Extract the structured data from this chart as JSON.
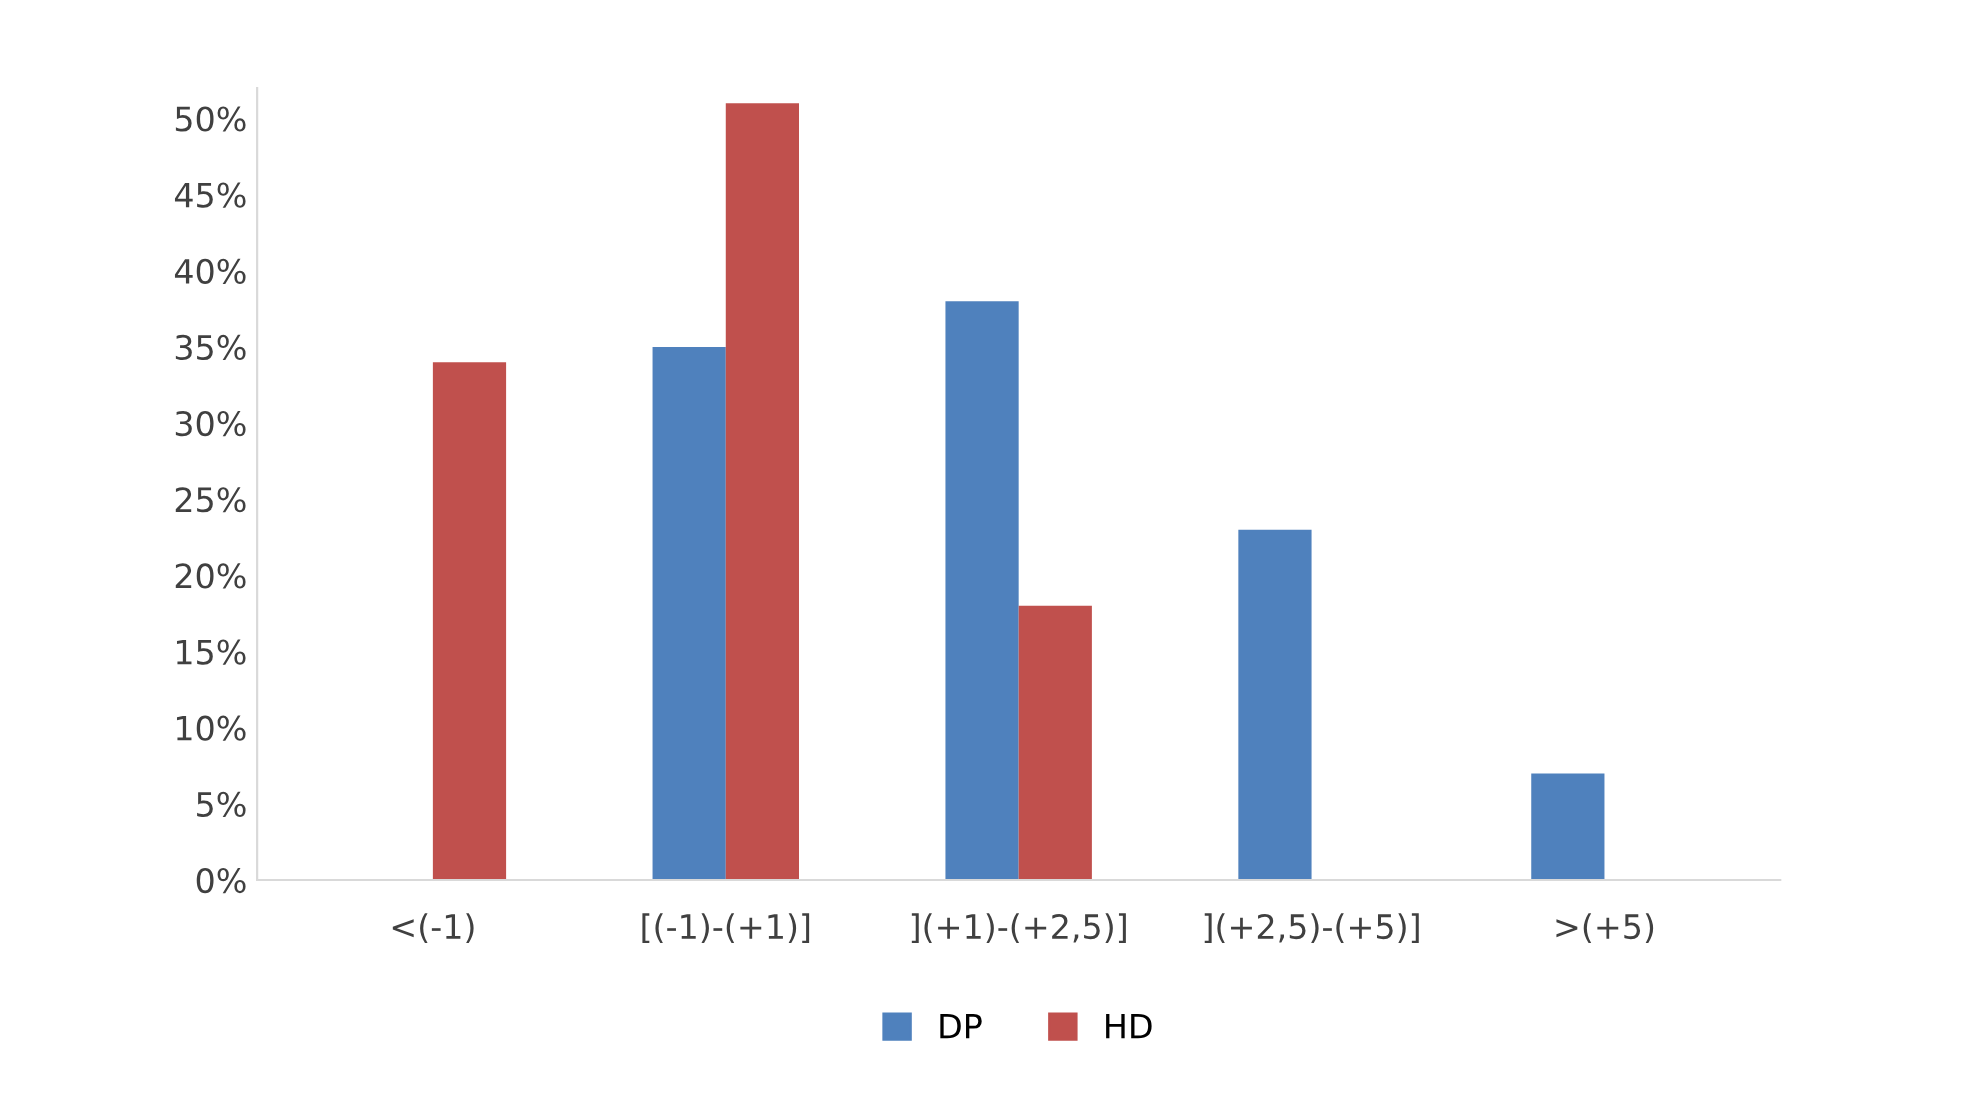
{
  "chart_data": {
    "type": "bar",
    "categories": [
      "<(-1)",
      "[(-1)-(+1)]",
      "](+1)-(+2,5)]",
      "](+2,5)-(+5)]",
      ">(+5)"
    ],
    "series": [
      {
        "name": "DP",
        "color": "#4f81bd",
        "values": [
          0,
          35,
          38,
          23,
          7
        ]
      },
      {
        "name": "HD",
        "color": "#c0504d",
        "values": [
          34,
          51,
          18,
          0,
          0
        ]
      }
    ],
    "ylim": [
      0,
      52
    ],
    "yticks": [
      {
        "value": 0,
        "label": "0%"
      },
      {
        "value": 5,
        "label": "5%"
      },
      {
        "value": 10,
        "label": "10%"
      },
      {
        "value": 15,
        "label": "15%"
      },
      {
        "value": 20,
        "label": "20%"
      },
      {
        "value": 25,
        "label": "25%"
      },
      {
        "value": 30,
        "label": "30%"
      },
      {
        "value": 35,
        "label": "35%"
      },
      {
        "value": 40,
        "label": "40%"
      },
      {
        "value": 45,
        "label": "45%"
      },
      {
        "value": 50,
        "label": "50%"
      }
    ],
    "grid": false,
    "legend": "bottom"
  }
}
